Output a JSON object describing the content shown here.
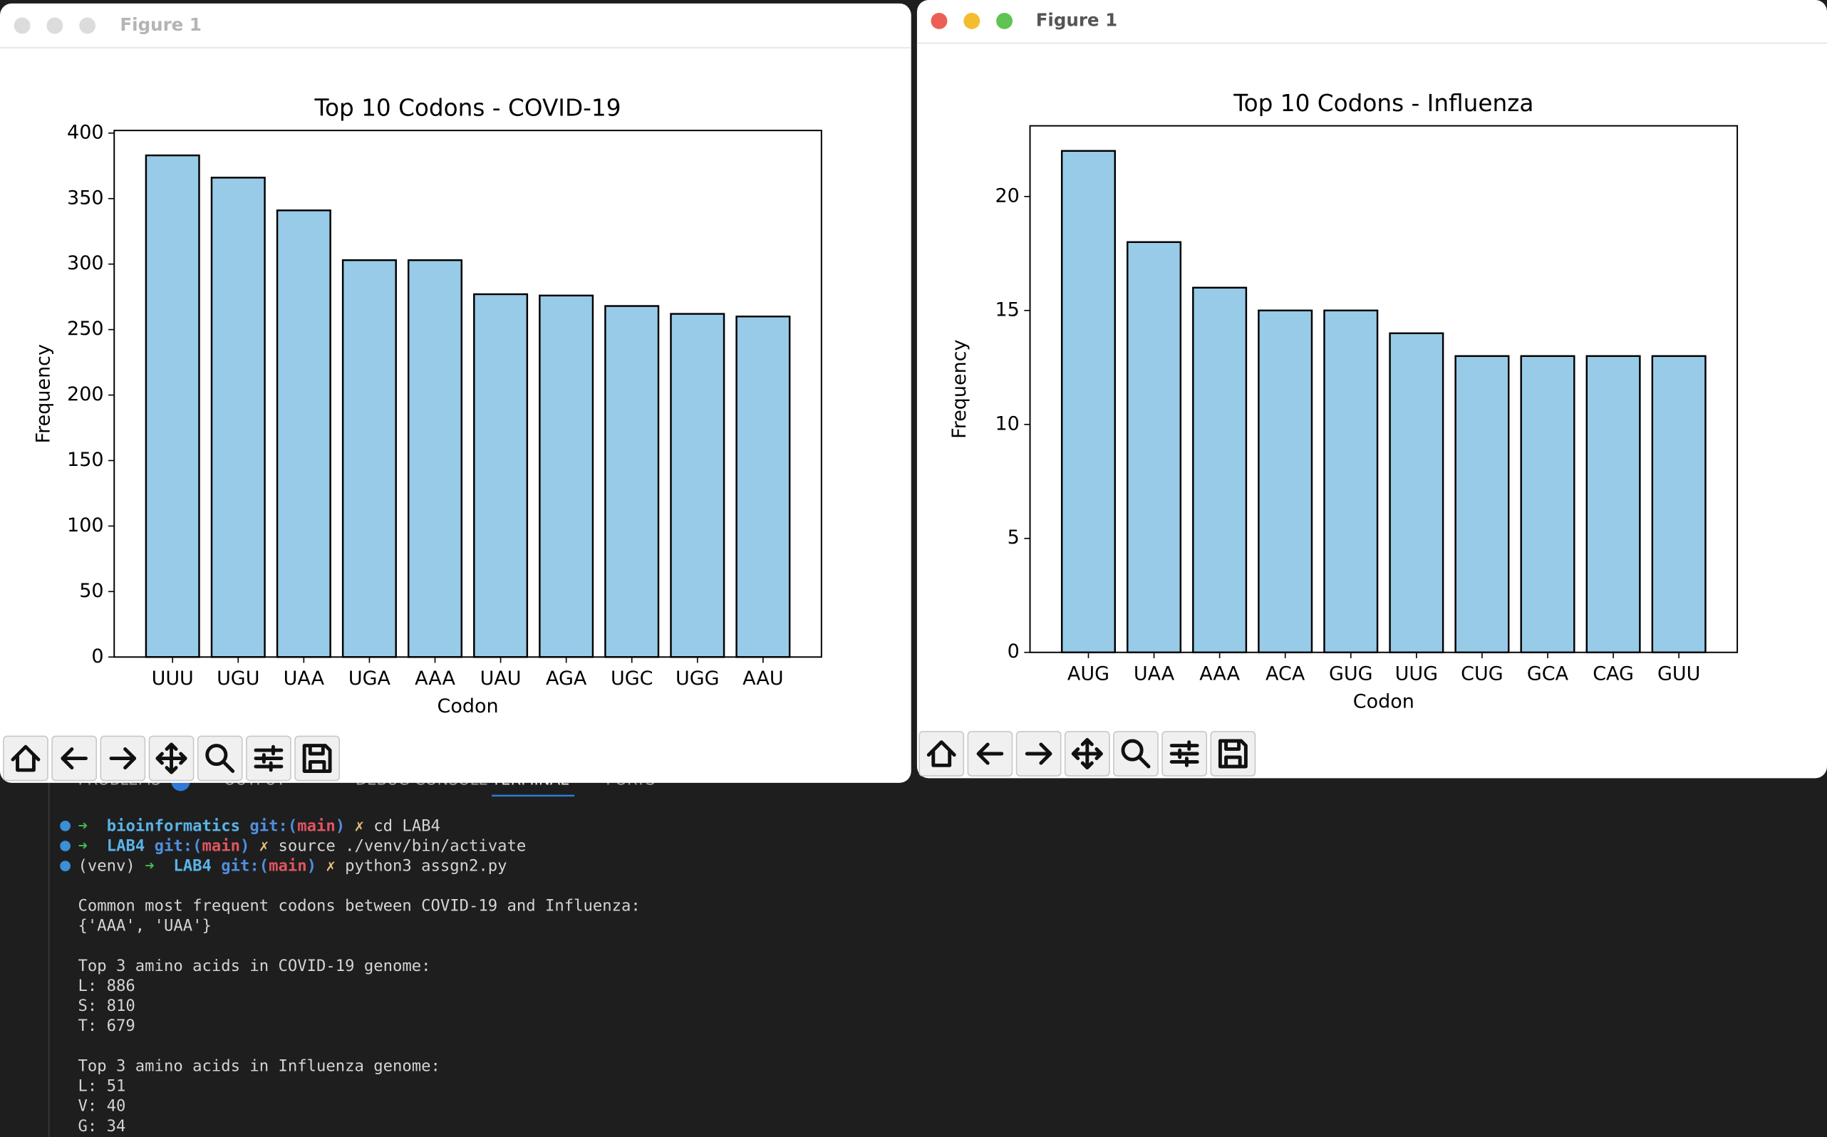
{
  "windows": [
    {
      "title": "Figure 1"
    },
    {
      "title": "Figure 1"
    }
  ],
  "chart_data": [
    {
      "type": "bar",
      "title": "Top 10 Codons - COVID-19",
      "x_label": "Codon",
      "y_label": "Frequency",
      "categories": [
        "UUU",
        "UGU",
        "UAA",
        "UGA",
        "AAA",
        "UAU",
        "AGA",
        "UGC",
        "UGG",
        "AAU"
      ],
      "values": [
        383,
        366,
        341,
        303,
        303,
        277,
        276,
        268,
        262,
        260
      ],
      "color": "#97cbe8",
      "edge_color": "#000000",
      "ylim": [
        0,
        402
      ],
      "yticks": [
        0,
        50,
        100,
        150,
        200,
        250,
        300,
        350,
        400
      ]
    },
    {
      "type": "bar",
      "title": "Top 10 Codons - Influenza",
      "x_label": "Codon",
      "y_label": "Frequency",
      "categories": [
        "AUG",
        "UAA",
        "AAA",
        "ACA",
        "GUG",
        "UUG",
        "CUG",
        "GCA",
        "CAG",
        "GUU"
      ],
      "values": [
        22,
        18,
        16,
        15,
        15,
        14,
        13,
        13,
        13,
        13
      ],
      "color": "#97cbe8",
      "edge_color": "#000000",
      "ylim": [
        0,
        23.1
      ],
      "yticks": [
        0,
        5,
        10,
        15,
        20
      ]
    }
  ],
  "terminal": {
    "tabs": [
      "PROBLEMS",
      "OUTPUT",
      "DEBUG CONSOLE",
      "TERMINAL",
      "PORTS"
    ],
    "commands": [
      [
        {
          "text": "➜  ",
          "color": "#3fb950"
        },
        {
          "text": "bioinformatics ",
          "color": "#5ab4e8",
          "bold": true
        },
        {
          "text": "git:(",
          "color": "#4f8fe0",
          "bold": true
        },
        {
          "text": "main",
          "color": "#e05561",
          "bold": true
        },
        {
          "text": ") ",
          "color": "#4f8fe0",
          "bold": true
        },
        {
          "text": "✗ ",
          "color": "#e5c07b"
        },
        {
          "text": "cd LAB4",
          "color": "#d4d4d4"
        }
      ],
      [
        {
          "text": "➜  ",
          "color": "#3fb950"
        },
        {
          "text": "LAB4 ",
          "color": "#5ab4e8",
          "bold": true
        },
        {
          "text": "git:(",
          "color": "#4f8fe0",
          "bold": true
        },
        {
          "text": "main",
          "color": "#e05561",
          "bold": true
        },
        {
          "text": ") ",
          "color": "#4f8fe0",
          "bold": true
        },
        {
          "text": "✗ ",
          "color": "#e5c07b"
        },
        {
          "text": "source ./venv/bin/activate",
          "color": "#d4d4d4"
        }
      ],
      [
        {
          "text": "(venv) ",
          "color": "#d4d4d4"
        },
        {
          "text": "➜  ",
          "color": "#3fb950"
        },
        {
          "text": "LAB4 ",
          "color": "#5ab4e8",
          "bold": true
        },
        {
          "text": "git:(",
          "color": "#4f8fe0",
          "bold": true
        },
        {
          "text": "main",
          "color": "#e05561",
          "bold": true
        },
        {
          "text": ") ",
          "color": "#4f8fe0",
          "bold": true
        },
        {
          "text": "✗ ",
          "color": "#e5c07b"
        },
        {
          "text": "python3 assgn2.py",
          "color": "#d4d4d4"
        }
      ]
    ],
    "output_blocks": [
      [
        "Common most frequent codons between COVID-19 and Influenza:",
        "{'AAA', 'UAA'}"
      ],
      [
        "Top 3 amino acids in COVID-19 genome:",
        "L: 886",
        "S: 810",
        "T: 679"
      ],
      [
        "Top 3 amino acids in Influenza genome:",
        "L: 51",
        "V: 40",
        "G: 34"
      ]
    ]
  }
}
